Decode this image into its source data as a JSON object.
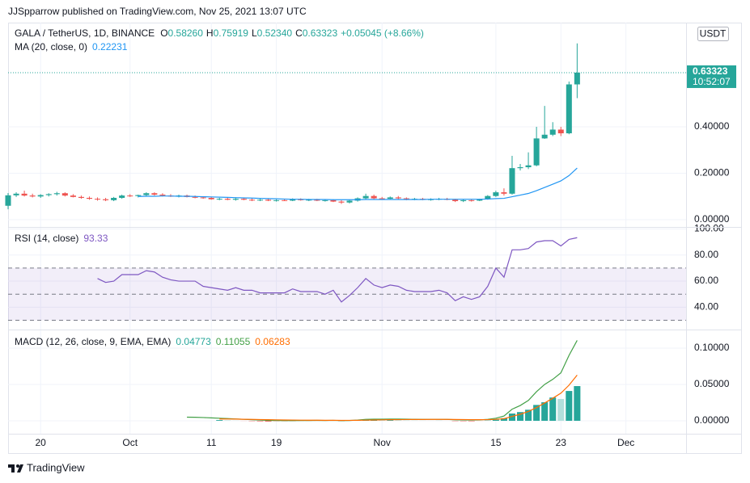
{
  "header": {
    "text": "JJSpparrow published on TradingView.com, Nov 25, 2021 13:07 UTC"
  },
  "footer": {
    "brand": "TradingView"
  },
  "chart_data": [
    {
      "type": "candlestick",
      "title": "GALA / TetherUS, 1D, BINANCE",
      "ohlc_labels": [
        "O",
        "H",
        "L",
        "C"
      ],
      "ohlc_values": [
        "0.58260",
        "0.75919",
        "0.52340",
        "0.63323"
      ],
      "change": "+0.05045 (+8.66%)",
      "currency": "USDT",
      "last_price_label": "0.63323",
      "countdown": "10:52:07",
      "up_color": "#26a69a",
      "down_color": "#ef5350",
      "grid": true,
      "xlim": [
        -4,
        79.4
      ],
      "xticks": [
        {
          "value": 0,
          "label": "20"
        },
        {
          "value": 11,
          "label": "Oct"
        },
        {
          "value": 21,
          "label": "11"
        },
        {
          "value": 29,
          "label": "19"
        },
        {
          "value": 42,
          "label": "Nov"
        },
        {
          "value": 56,
          "label": "15"
        },
        {
          "value": 64,
          "label": "23"
        },
        {
          "value": 72,
          "label": "Dec"
        }
      ],
      "ylim": [
        -0.0278,
        0.8487
      ],
      "yticks": [
        {
          "value": 0,
          "label": "0.00000"
        },
        {
          "value": 0.2,
          "label": "0.20000"
        },
        {
          "value": 0.4,
          "label": "0.40000"
        }
      ],
      "x": [
        -4,
        -3,
        -2,
        -1,
        0,
        1,
        2,
        3,
        4,
        5,
        6,
        7,
        8,
        9,
        10,
        11,
        12,
        13,
        14,
        15,
        16,
        17,
        18,
        19,
        20,
        21,
        22,
        23,
        24,
        25,
        26,
        27,
        28,
        29,
        30,
        31,
        32,
        33,
        34,
        35,
        36,
        37,
        38,
        39,
        40,
        41,
        42,
        43,
        44,
        45,
        46,
        47,
        48,
        49,
        50,
        51,
        52,
        53,
        54,
        55,
        56,
        57,
        58,
        59,
        60,
        61,
        62,
        63,
        64,
        65,
        66
      ],
      "candles": [
        [
          0.06,
          0.115,
          0.045,
          0.105
        ],
        [
          0.105,
          0.118,
          0.098,
          0.112
        ],
        [
          0.112,
          0.125,
          0.1,
          0.104
        ],
        [
          0.104,
          0.112,
          0.096,
          0.1
        ],
        [
          0.1,
          0.11,
          0.094,
          0.106
        ],
        [
          0.106,
          0.114,
          0.1,
          0.11
        ],
        [
          0.11,
          0.12,
          0.104,
          0.114
        ],
        [
          0.114,
          0.118,
          0.1,
          0.104
        ],
        [
          0.104,
          0.11,
          0.096,
          0.098
        ],
        [
          0.098,
          0.104,
          0.09,
          0.094
        ],
        [
          0.094,
          0.1,
          0.086,
          0.09
        ],
        [
          0.09,
          0.096,
          0.082,
          0.088
        ],
        [
          0.088,
          0.094,
          0.08,
          0.084
        ],
        [
          0.084,
          0.098,
          0.08,
          0.094
        ],
        [
          0.094,
          0.108,
          0.09,
          0.104
        ],
        [
          0.104,
          0.11,
          0.098,
          0.102
        ],
        [
          0.102,
          0.108,
          0.096,
          0.106
        ],
        [
          0.106,
          0.118,
          0.102,
          0.114
        ],
        [
          0.114,
          0.118,
          0.104,
          0.108
        ],
        [
          0.108,
          0.114,
          0.1,
          0.104
        ],
        [
          0.104,
          0.11,
          0.098,
          0.1
        ],
        [
          0.1,
          0.108,
          0.096,
          0.104
        ],
        [
          0.104,
          0.108,
          0.096,
          0.098
        ],
        [
          0.098,
          0.104,
          0.092,
          0.096
        ],
        [
          0.096,
          0.1,
          0.09,
          0.094
        ],
        [
          0.094,
          0.098,
          0.086,
          0.088
        ],
        [
          0.088,
          0.094,
          0.084,
          0.09
        ],
        [
          0.09,
          0.096,
          0.084,
          0.086
        ],
        [
          0.086,
          0.094,
          0.082,
          0.09
        ],
        [
          0.09,
          0.094,
          0.084,
          0.086
        ],
        [
          0.086,
          0.092,
          0.08,
          0.084
        ],
        [
          0.084,
          0.09,
          0.08,
          0.086
        ],
        [
          0.086,
          0.09,
          0.08,
          0.082
        ],
        [
          0.082,
          0.088,
          0.078,
          0.084
        ],
        [
          0.084,
          0.09,
          0.08,
          0.082
        ],
        [
          0.082,
          0.092,
          0.08,
          0.088
        ],
        [
          0.088,
          0.092,
          0.082,
          0.084
        ],
        [
          0.084,
          0.09,
          0.08,
          0.086
        ],
        [
          0.086,
          0.09,
          0.08,
          0.082
        ],
        [
          0.082,
          0.088,
          0.078,
          0.084
        ],
        [
          0.084,
          0.088,
          0.076,
          0.078
        ],
        [
          0.078,
          0.084,
          0.068,
          0.074
        ],
        [
          0.074,
          0.086,
          0.07,
          0.082
        ],
        [
          0.082,
          0.096,
          0.078,
          0.092
        ],
        [
          0.092,
          0.112,
          0.086,
          0.102
        ],
        [
          0.102,
          0.108,
          0.088,
          0.092
        ],
        [
          0.092,
          0.098,
          0.086,
          0.09
        ],
        [
          0.09,
          0.1,
          0.086,
          0.096
        ],
        [
          0.096,
          0.102,
          0.088,
          0.092
        ],
        [
          0.092,
          0.096,
          0.084,
          0.088
        ],
        [
          0.088,
          0.094,
          0.084,
          0.09
        ],
        [
          0.09,
          0.094,
          0.084,
          0.086
        ],
        [
          0.086,
          0.092,
          0.082,
          0.088
        ],
        [
          0.088,
          0.094,
          0.084,
          0.09
        ],
        [
          0.09,
          0.094,
          0.084,
          0.086
        ],
        [
          0.086,
          0.09,
          0.076,
          0.08
        ],
        [
          0.08,
          0.088,
          0.076,
          0.084
        ],
        [
          0.084,
          0.088,
          0.078,
          0.082
        ],
        [
          0.082,
          0.09,
          0.08,
          0.088
        ],
        [
          0.088,
          0.106,
          0.086,
          0.102
        ],
        [
          0.102,
          0.125,
          0.098,
          0.118
        ],
        [
          0.118,
          0.135,
          0.104,
          0.112
        ],
        [
          0.112,
          0.275,
          0.108,
          0.222
        ],
        [
          0.222,
          0.24,
          0.212,
          0.226
        ],
        [
          0.226,
          0.29,
          0.218,
          0.234
        ],
        [
          0.234,
          0.4,
          0.23,
          0.35
        ],
        [
          0.35,
          0.49,
          0.348,
          0.366
        ],
        [
          0.366,
          0.42,
          0.36,
          0.388
        ],
        [
          0.388,
          0.4,
          0.36,
          0.372
        ],
        [
          0.372,
          0.595,
          0.368,
          0.5826
        ],
        [
          0.5826,
          0.75919,
          0.5234,
          0.63323
        ]
      ],
      "series": [
        {
          "name": "MA (20, close, 0)",
          "color": "#2196f3",
          "legend_value": "0.22231",
          "values": [
            null,
            null,
            null,
            null,
            null,
            null,
            null,
            null,
            null,
            null,
            null,
            null,
            null,
            null,
            null,
            null,
            0.1,
            0.101,
            0.101,
            0.102,
            0.102,
            0.101,
            0.101,
            0.1,
            0.099,
            0.098,
            0.097,
            0.096,
            0.095,
            0.094,
            0.093,
            0.092,
            0.091,
            0.09,
            0.089,
            0.088,
            0.088,
            0.087,
            0.087,
            0.087,
            0.086,
            0.086,
            0.086,
            0.086,
            0.087,
            0.087,
            0.087,
            0.087,
            0.087,
            0.087,
            0.087,
            0.087,
            0.088,
            0.088,
            0.088,
            0.088,
            0.088,
            0.088,
            0.088,
            0.089,
            0.091,
            0.092,
            0.099,
            0.106,
            0.113,
            0.125,
            0.139,
            0.153,
            0.167,
            0.19,
            0.22231
          ]
        }
      ]
    },
    {
      "type": "line",
      "grid": true,
      "ylim": [
        23.5,
        100.9
      ],
      "yticks": [
        {
          "value": 100,
          "label": "100.00"
        },
        {
          "value": 80,
          "label": "80.00"
        },
        {
          "value": 60,
          "label": "60.00"
        },
        {
          "value": 40,
          "label": "40.00"
        }
      ],
      "bands": {
        "upper": 70,
        "middle": 50,
        "lower": 30,
        "fill": "#7e57c2",
        "line_color": "#787b86"
      },
      "series": [
        {
          "name": "RSI (14, close)",
          "color": "#7e57c2",
          "legend_value": "93.33",
          "values": [
            null,
            null,
            null,
            null,
            null,
            null,
            null,
            null,
            null,
            null,
            null,
            62,
            59,
            60,
            65,
            65,
            65,
            68,
            67,
            63,
            61,
            60,
            60,
            60,
            56,
            55,
            54,
            53,
            55,
            53,
            53,
            51,
            51,
            51,
            51,
            54,
            52,
            52,
            52,
            50,
            53,
            44,
            49,
            55,
            62,
            57,
            55,
            57,
            56,
            53,
            52,
            52,
            52,
            53,
            51,
            45,
            48,
            46,
            48,
            56,
            70,
            63,
            84,
            84,
            85,
            90,
            91,
            91,
            87,
            92,
            93.33
          ]
        }
      ]
    },
    {
      "type": "combo",
      "grid": true,
      "ylim": [
        -0.0178,
        0.1244
      ],
      "yticks": [
        {
          "value": 0.1,
          "label": "0.10000"
        },
        {
          "value": 0.05,
          "label": "0.05000"
        },
        {
          "value": 0,
          "label": "0.00000"
        }
      ],
      "title": "MACD (12, 26, close, 9, EMA, EMA)",
      "series": [
        {
          "kind": "histogram",
          "legend_value": "0.04773",
          "color": "#26a69a",
          "color_fading": "#b2dfdb",
          "color_down": "#ef5350",
          "color_down_fading": "#ffcdd2",
          "values": [
            null,
            null,
            null,
            null,
            null,
            null,
            null,
            null,
            null,
            null,
            null,
            null,
            null,
            null,
            null,
            null,
            null,
            null,
            null,
            null,
            null,
            null,
            null,
            null,
            null,
            null,
            0.001,
            0.0006,
            0.0002,
            -0.0001,
            -0.0004,
            -0.0007,
            -0.001,
            -0.001,
            -0.0009,
            -0.0008,
            -0.0005,
            -0.0004,
            -0.0003,
            -0.0003,
            -0.0001,
            -0.0004,
            -0.0002,
            0.0003,
            0.0011,
            0.0011,
            0.0009,
            0.0009,
            0.0008,
            0.0005,
            0.0003,
            0.0002,
            0.0001,
            0.0001,
            0.0,
            -0.0004,
            -0.0005,
            -0.0006,
            -0.0003,
            0.0004,
            0.0015,
            0.0036,
            0.01,
            0.012,
            0.0152,
            0.0218,
            0.0255,
            0.032,
            0.03,
            0.041,
            0.04773
          ]
        },
        {
          "kind": "line",
          "legend_value": "0.11055",
          "color": "#43a047",
          "values": [
            null,
            null,
            null,
            null,
            null,
            null,
            null,
            null,
            null,
            null,
            null,
            null,
            null,
            null,
            null,
            null,
            null,
            null,
            null,
            null,
            null,
            null,
            0.005,
            0.0048,
            0.0045,
            0.004,
            0.0035,
            0.003,
            0.0025,
            0.002,
            0.0015,
            0.001,
            0.0005,
            0.0003,
            0.0002,
            0.0002,
            0.0004,
            0.0004,
            0.0005,
            0.0004,
            0.0006,
            0.0002,
            0.0004,
            0.001,
            0.002,
            0.0022,
            0.0022,
            0.0024,
            0.0024,
            0.0022,
            0.0021,
            0.002,
            0.002,
            0.002,
            0.0019,
            0.0014,
            0.0012,
            0.001,
            0.0012,
            0.002,
            0.0035,
            0.0065,
            0.016,
            0.021,
            0.028,
            0.04,
            0.05,
            0.057,
            0.066,
            0.09,
            0.11055
          ]
        },
        {
          "kind": "line",
          "legend_value": "0.06283",
          "color": "#ff6d00",
          "values": [
            null,
            null,
            null,
            null,
            null,
            null,
            null,
            null,
            null,
            null,
            null,
            null,
            null,
            null,
            null,
            null,
            null,
            null,
            null,
            null,
            null,
            null,
            null,
            null,
            null,
            null,
            0.0025,
            0.0024,
            0.0023,
            0.0021,
            0.0019,
            0.0017,
            0.0015,
            0.0013,
            0.0011,
            0.001,
            0.0009,
            0.0008,
            0.0008,
            0.0007,
            0.0007,
            0.0006,
            0.0006,
            0.0007,
            0.0009,
            0.0011,
            0.0013,
            0.0015,
            0.0016,
            0.0017,
            0.0018,
            0.0018,
            0.0019,
            0.0019,
            0.0019,
            0.0018,
            0.0017,
            0.0016,
            0.0015,
            0.0016,
            0.002,
            0.0029,
            0.006,
            0.009,
            0.0128,
            0.0182,
            0.0245,
            0.031,
            0.038,
            0.049,
            0.06283
          ]
        }
      ]
    }
  ]
}
